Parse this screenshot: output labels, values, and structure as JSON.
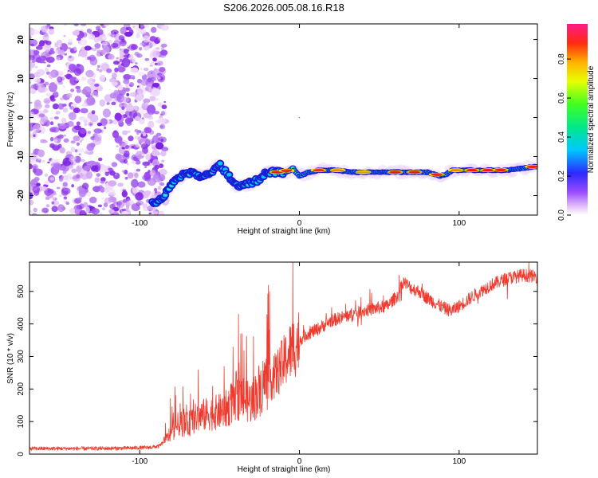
{
  "page_title": "S206.2026.005.08.16.R18",
  "chart_data": [
    {
      "type": "heatmap",
      "title": "S206.2026.005.08.16.R18",
      "xlabel": "Height of straight line (km)",
      "ylabel": "Frequency (Hz)",
      "xlim": [
        -169,
        149
      ],
      "ylim": [
        -25,
        24
      ],
      "x_ticks": [
        -100,
        0,
        100
      ],
      "y_ticks": [
        -20,
        -10,
        0,
        10,
        20
      ],
      "colorbar": {
        "label": "Normalized spectral amplitude",
        "range": [
          0,
          0.98
        ],
        "ticks": [
          "0.0",
          "0.2",
          "0.4",
          "0.6",
          "0.8"
        ],
        "tick_values": [
          0.0,
          0.2,
          0.4,
          0.6,
          0.8
        ]
      },
      "noise_region": {
        "x_range": [
          -169,
          -84
        ],
        "y_range": [
          -25,
          24
        ]
      },
      "ridge": {
        "x": [
          -92,
          -86,
          -80,
          -74,
          -68,
          -62,
          -56,
          -50,
          -44,
          -38,
          -32,
          -26,
          -20,
          -14,
          -8,
          -4,
          0,
          6,
          12,
          18,
          24,
          32,
          40,
          50,
          60,
          70,
          80,
          84,
          88,
          92,
          96,
          100,
          110,
          120,
          130,
          140,
          148
        ],
        "y": [
          -22,
          -21,
          -17,
          -15,
          -14,
          -15,
          -14,
          -12,
          -15,
          -18,
          -17,
          -16,
          -14,
          -14,
          -14,
          -13,
          -15,
          -14,
          -13.5,
          -13.5,
          -13.5,
          -14,
          -14,
          -14,
          -14,
          -14,
          -14,
          -14.5,
          -15,
          -14.5,
          -13.5,
          -13.5,
          -13.5,
          -13.5,
          -13.5,
          -13,
          -12.5
        ]
      }
    },
    {
      "type": "line",
      "xlabel": "Height of straight line (km)",
      "ylabel": "SNR (10 * v/v)",
      "xlim": [
        -169,
        149
      ],
      "ylim": [
        0,
        590
      ],
      "x_ticks": [
        -100,
        0,
        100
      ],
      "y_ticks": [
        0,
        100,
        200,
        300,
        400,
        500
      ],
      "series": [
        {
          "name": "SNR",
          "color": "#f03a2e",
          "x": [
            -169,
            -150,
            -130,
            -110,
            -95,
            -88,
            -84,
            -80,
            -75,
            -70,
            -65,
            -60,
            -55,
            -50,
            -45,
            -40,
            -35,
            -30,
            -25,
            -20,
            -15,
            -10,
            -5,
            0,
            5,
            10,
            20,
            30,
            40,
            50,
            55,
            62,
            65,
            70,
            75,
            80,
            85,
            90,
            95,
            100,
            110,
            120,
            130,
            140,
            149
          ],
          "y": [
            17,
            17,
            17,
            18,
            20,
            24,
            40,
            70,
            95,
            90,
            110,
            120,
            125,
            130,
            140,
            180,
            170,
            160,
            200,
            230,
            240,
            280,
            320,
            350,
            370,
            380,
            410,
            425,
            440,
            450,
            455,
            490,
            530,
            510,
            500,
            480,
            465,
            450,
            440,
            455,
            490,
            520,
            540,
            550,
            545
          ]
        }
      ]
    }
  ]
}
